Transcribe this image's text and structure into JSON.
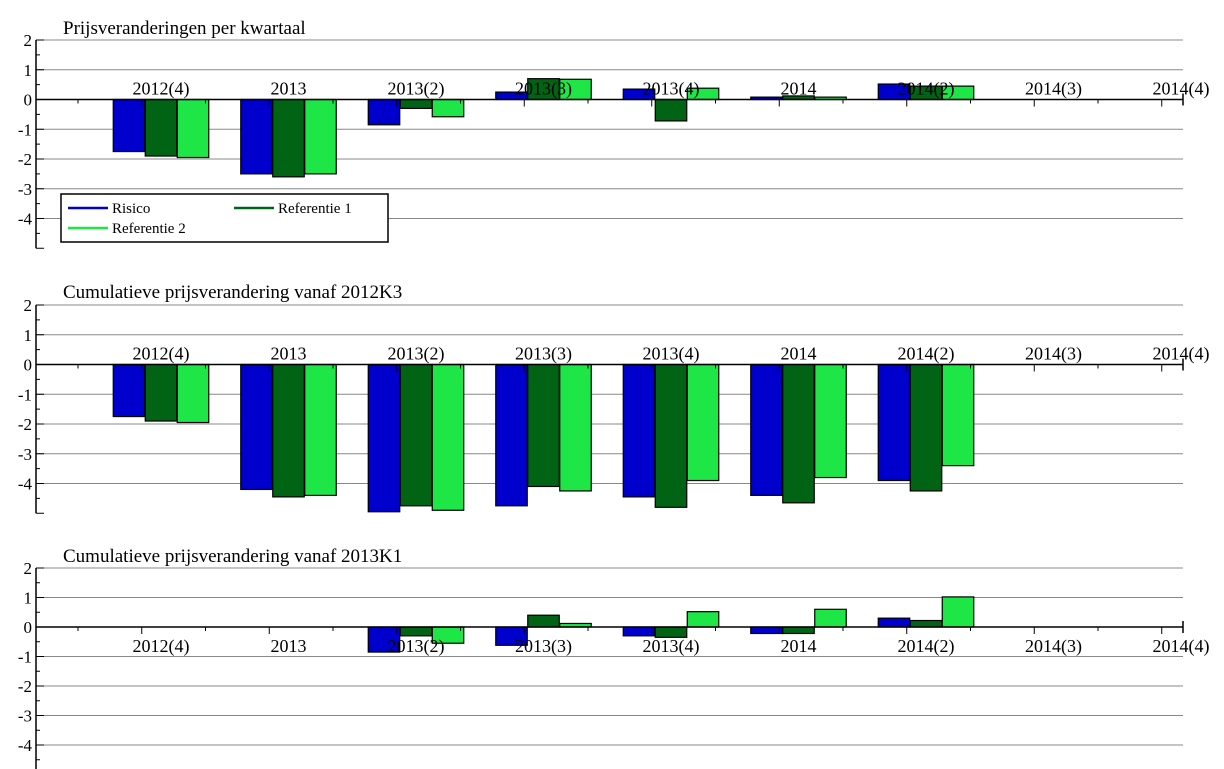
{
  "colors": {
    "risico": "#0000cc",
    "referentie1": "#006414",
    "referentie2": "#1ee646",
    "grid": "#888888",
    "axis": "#000000"
  },
  "legend": {
    "placement": "bottom-left of first panel",
    "entries": [
      "Risico",
      "Referentie 1",
      "Referentie 2"
    ]
  },
  "chart_data": [
    {
      "type": "bar",
      "title": "Prijsveranderingen per kwartaal",
      "categories": [
        "2012(4)",
        "2013",
        "2013(2)",
        "2013(3)",
        "2013(4)",
        "2014",
        "2014(2)",
        "2014(3)",
        "2014(4)"
      ],
      "ylim": [
        -5,
        2
      ],
      "yticks": [
        "2",
        "1",
        "0",
        "-1",
        "-2",
        "-3",
        "-4"
      ],
      "xlabel_position": "above axis",
      "grid": true,
      "series": [
        {
          "name": "Risico",
          "values": [
            -1.75,
            -2.5,
            -0.85,
            0.25,
            0.35,
            0.08,
            0.52,
            null,
            null
          ]
        },
        {
          "name": "Referentie 1",
          "values": [
            -1.9,
            -2.6,
            -0.3,
            0.7,
            -0.72,
            0.12,
            0.45,
            null,
            null
          ]
        },
        {
          "name": "Referentie 2",
          "values": [
            -1.95,
            -2.5,
            -0.58,
            0.68,
            0.38,
            0.08,
            0.45,
            null,
            null
          ]
        }
      ]
    },
    {
      "type": "bar",
      "title": "Cumulatieve prijsverandering vanaf 2012K3",
      "categories": [
        "2012(4)",
        "2013",
        "2013(2)",
        "2013(3)",
        "2013(4)",
        "2014",
        "2014(2)",
        "2014(3)",
        "2014(4)"
      ],
      "ylim": [
        -5,
        2
      ],
      "yticks": [
        "2",
        "1",
        "0",
        "-1",
        "-2",
        "-3",
        "-4"
      ],
      "xlabel_position": "above axis",
      "grid": true,
      "series": [
        {
          "name": "Risico",
          "values": [
            -1.75,
            -4.2,
            -4.95,
            -4.75,
            -4.45,
            -4.4,
            -3.9,
            null,
            null
          ]
        },
        {
          "name": "Referentie 1",
          "values": [
            -1.9,
            -4.45,
            -4.75,
            -4.1,
            -4.8,
            -4.65,
            -4.25,
            null,
            null
          ]
        },
        {
          "name": "Referentie 2",
          "values": [
            -1.95,
            -4.4,
            -4.9,
            -4.25,
            -3.9,
            -3.8,
            -3.4,
            null,
            null
          ]
        }
      ]
    },
    {
      "type": "bar",
      "title": "Cumulatieve prijsverandering vanaf 2013K1",
      "categories": [
        "2012(4)",
        "2013",
        "2013(2)",
        "2013(3)",
        "2013(4)",
        "2014",
        "2014(2)",
        "2014(3)",
        "2014(4)"
      ],
      "ylim": [
        -5,
        2
      ],
      "yticks": [
        "2",
        "1",
        "0",
        "-1",
        "-2",
        "-3",
        "-4"
      ],
      "xlabel_position": "below axis",
      "grid": true,
      "series": [
        {
          "name": "Risico",
          "values": [
            null,
            null,
            -0.85,
            -0.62,
            -0.3,
            -0.22,
            0.3,
            null,
            null
          ]
        },
        {
          "name": "Referentie 1",
          "values": [
            null,
            null,
            -0.3,
            0.4,
            -0.35,
            -0.22,
            0.22,
            null,
            null
          ]
        },
        {
          "name": "Referentie 2",
          "values": [
            null,
            null,
            -0.55,
            0.12,
            0.52,
            0.6,
            1.02,
            null,
            null
          ]
        }
      ]
    }
  ]
}
